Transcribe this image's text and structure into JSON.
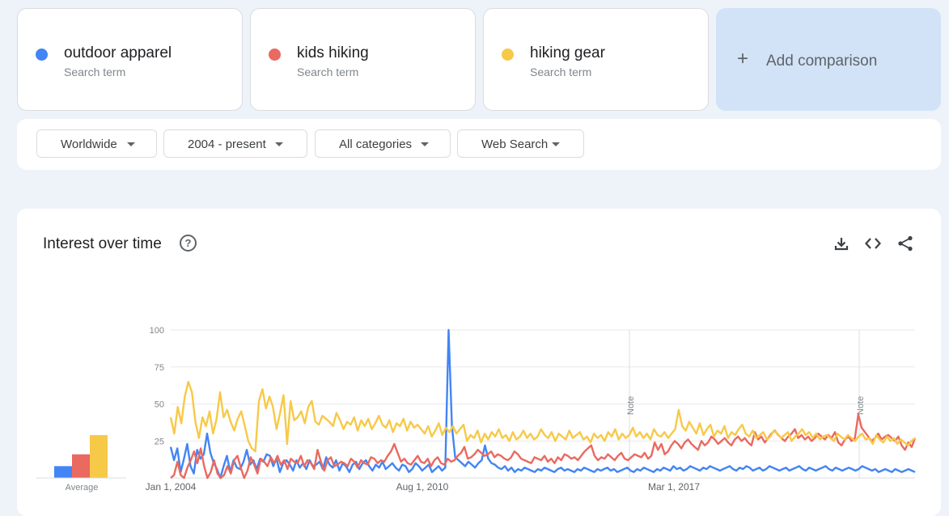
{
  "terms": [
    {
      "name": "outdoor apparel",
      "sub": "Search term",
      "color": "#4285f4"
    },
    {
      "name": "kids hiking",
      "sub": "Search term",
      "color": "#ea6960"
    },
    {
      "name": "hiking gear",
      "sub": "Search term",
      "color": "#f7c948"
    }
  ],
  "add_comparison": {
    "label": "Add comparison",
    "icon": "plus-icon"
  },
  "filters": [
    {
      "label": "Worldwide"
    },
    {
      "label": "2004 - present"
    },
    {
      "label": "All categories"
    },
    {
      "label": "Web Search"
    }
  ],
  "panel": {
    "title": "Interest over time",
    "help_icon": "help-icon",
    "tools": [
      "download-icon",
      "embed-code-icon",
      "share-icon"
    ]
  },
  "chart_data": {
    "type": "line",
    "ylim": [
      0,
      100
    ],
    "yticks": [
      "100",
      "75",
      "50",
      "25"
    ],
    "xticks": [
      "Jan 1, 2004",
      "Aug 1, 2010",
      "Mar 1, 2017"
    ],
    "notes": [
      "Note",
      "Note"
    ],
    "average_label": "Average",
    "averages": [
      {
        "name": "outdoor apparel",
        "value": 8
      },
      {
        "name": "kids hiking",
        "value": 16
      },
      {
        "name": "hiking gear",
        "value": 29
      }
    ],
    "series": [
      {
        "name": "outdoor apparel",
        "color": "#4285f4",
        "values": [
          21,
          12,
          20,
          4,
          13,
          23,
          8,
          3,
          19,
          13,
          16,
          30,
          17,
          10,
          6,
          0,
          8,
          15,
          4,
          12,
          7,
          6,
          11,
          19,
          9,
          12,
          6,
          13,
          11,
          16,
          15,
          8,
          13,
          4,
          10,
          12,
          9,
          5,
          12,
          7,
          10,
          6,
          12,
          8,
          9,
          11,
          6,
          14,
          9,
          7,
          12,
          5,
          10,
          8,
          4,
          9,
          11,
          6,
          10,
          12,
          8,
          5,
          9,
          7,
          11,
          6,
          8,
          10,
          7,
          5,
          9,
          8,
          4,
          6,
          10,
          8,
          5,
          7,
          9,
          4,
          6,
          8,
          5,
          7,
          100,
          35,
          14,
          12,
          10,
          8,
          11,
          9,
          7,
          10,
          12,
          22,
          13,
          10,
          9,
          7,
          6,
          8,
          5,
          7,
          4,
          6,
          5,
          7,
          6,
          5,
          4,
          6,
          5,
          7,
          6,
          5,
          4,
          6,
          7,
          5,
          6,
          5,
          4,
          6,
          5,
          7,
          6,
          5,
          4,
          6,
          5,
          6,
          7,
          5,
          6,
          4,
          5,
          6,
          7,
          5,
          4,
          6,
          5,
          7,
          6,
          5,
          4,
          6,
          5,
          7,
          6,
          5,
          8,
          6,
          7,
          5,
          6,
          8,
          7,
          6,
          5,
          7,
          6,
          8,
          7,
          6,
          5,
          6,
          7,
          8,
          6,
          5,
          7,
          6,
          8,
          7,
          5,
          6,
          7,
          5,
          6,
          8,
          7,
          6,
          5,
          6,
          7,
          5,
          6,
          7,
          8,
          6,
          5,
          7,
          6,
          5,
          6,
          7,
          8,
          6,
          5,
          7,
          6,
          5,
          6,
          7,
          6,
          5,
          6,
          8,
          7,
          6,
          5,
          6,
          4,
          5,
          6,
          5,
          4,
          6,
          5,
          4,
          5,
          6,
          5,
          4
        ]
      },
      {
        "name": "kids hiking",
        "color": "#ea6960",
        "values": [
          0,
          2,
          11,
          2,
          0,
          7,
          12,
          18,
          10,
          20,
          8,
          0,
          4,
          12,
          3,
          0,
          2,
          8,
          3,
          12,
          15,
          7,
          0,
          5,
          14,
          9,
          3,
          13,
          11,
          8,
          14,
          10,
          15,
          9,
          12,
          6,
          13,
          11,
          10,
          15,
          8,
          12,
          10,
          6,
          19,
          11,
          5,
          12,
          14,
          8,
          9,
          11,
          10,
          8,
          13,
          11,
          7,
          12,
          10,
          9,
          14,
          13,
          10,
          12,
          11,
          15,
          18,
          23,
          17,
          11,
          13,
          10,
          9,
          12,
          15,
          11,
          10,
          13,
          8,
          12,
          14,
          10,
          9,
          13,
          11,
          12,
          15,
          17,
          21,
          13,
          14,
          16,
          19,
          17,
          15,
          16,
          18,
          14,
          16,
          15,
          13,
          12,
          14,
          18,
          16,
          13,
          12,
          11,
          10,
          14,
          13,
          12,
          15,
          11,
          13,
          10,
          14,
          12,
          16,
          15,
          13,
          14,
          12,
          15,
          18,
          20,
          22,
          15,
          12,
          14,
          13,
          16,
          14,
          12,
          15,
          17,
          13,
          12,
          14,
          16,
          15,
          14,
          17,
          13,
          15,
          24,
          19,
          23,
          16,
          18,
          22,
          25,
          23,
          20,
          24,
          26,
          23,
          21,
          19,
          25,
          22,
          24,
          28,
          26,
          23,
          25,
          27,
          24,
          22,
          26,
          28,
          25,
          27,
          24,
          22,
          31,
          26,
          28,
          24,
          27,
          30,
          32,
          29,
          27,
          25,
          28,
          30,
          33,
          27,
          29,
          26,
          28,
          25,
          27,
          30,
          28,
          26,
          29,
          27,
          31,
          24,
          22,
          26,
          28,
          25,
          27,
          43,
          34,
          31,
          28,
          25,
          27,
          30,
          26,
          28,
          29,
          27,
          25,
          28,
          22,
          19,
          24,
          21,
          27
        ]
      },
      {
        "name": "hiking gear",
        "color": "#f7c948",
        "values": [
          41,
          30,
          48,
          37,
          55,
          65,
          58,
          38,
          27,
          41,
          35,
          45,
          30,
          40,
          58,
          41,
          46,
          38,
          32,
          40,
          45,
          35,
          25,
          20,
          18,
          52,
          60,
          47,
          55,
          48,
          33,
          44,
          56,
          23,
          52,
          39,
          41,
          45,
          37,
          48,
          52,
          38,
          36,
          42,
          40,
          38,
          35,
          44,
          39,
          33,
          38,
          36,
          41,
          32,
          39,
          35,
          40,
          33,
          37,
          42,
          36,
          34,
          39,
          31,
          37,
          35,
          40,
          32,
          38,
          34,
          36,
          33,
          30,
          35,
          28,
          32,
          37,
          29,
          34,
          31,
          35,
          30,
          33,
          36,
          25,
          29,
          27,
          32,
          24,
          30,
          26,
          31,
          28,
          33,
          27,
          29,
          25,
          31,
          26,
          28,
          32,
          27,
          30,
          26,
          28,
          33,
          29,
          27,
          31,
          25,
          30,
          28,
          26,
          32,
          27,
          29,
          31,
          26,
          28,
          24,
          30,
          27,
          29,
          25,
          31,
          28,
          33,
          26,
          30,
          27,
          29,
          34,
          28,
          31,
          27,
          30,
          26,
          33,
          29,
          28,
          31,
          27,
          30,
          33,
          46,
          35,
          32,
          38,
          34,
          30,
          37,
          29,
          33,
          36,
          28,
          32,
          30,
          35,
          27,
          31,
          29,
          33,
          36,
          30,
          28,
          32,
          27,
          29,
          31,
          26,
          28,
          32,
          30,
          27,
          29,
          31,
          25,
          28,
          30,
          33,
          29,
          31,
          27,
          30,
          26,
          28,
          29,
          27,
          25,
          30,
          28,
          26,
          29,
          27,
          25,
          28,
          30,
          26,
          27,
          23,
          29,
          26,
          24,
          28,
          25,
          27,
          23,
          26,
          24,
          22,
          25,
          27
        ]
      }
    ]
  }
}
